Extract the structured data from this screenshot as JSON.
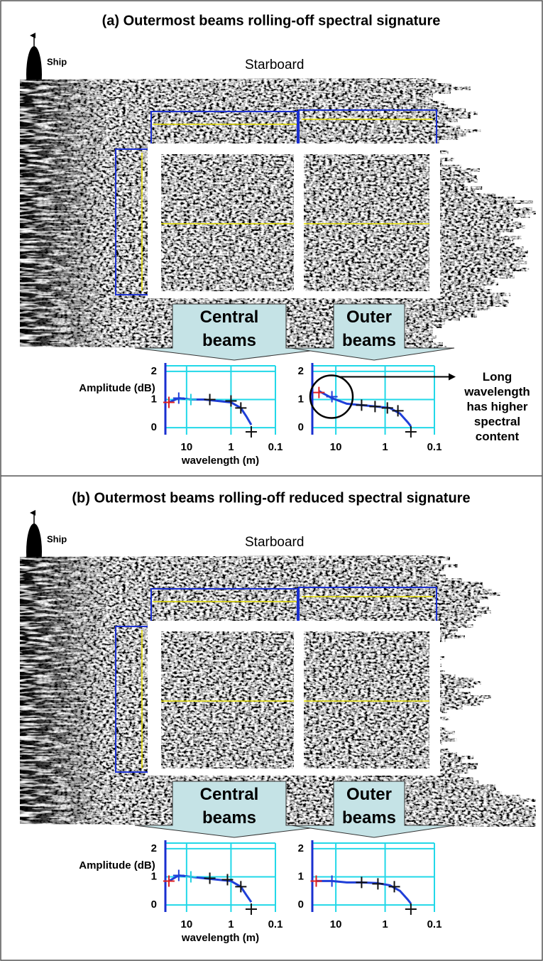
{
  "panels": [
    {
      "title": "(a) Outermost beams rolling-off spectral signature",
      "ship_label": "Ship",
      "side_label": "Starboard",
      "callouts": [
        "Central beams",
        "Outer beams"
      ],
      "annotation": "Long wavelength has higher spectral content",
      "charts": [
        {
          "type": "line",
          "ylabel": "Amplitude (dB)",
          "xlabel": "wavelength (m)",
          "xlog": true,
          "xlim": [
            30,
            0.1
          ],
          "ylim": [
            -0.25,
            2.2
          ],
          "xticks": [
            10,
            1,
            0.1
          ],
          "yticks": [
            0,
            1,
            2
          ],
          "curve": {
            "color": "#1f3fd8",
            "x": [
              25,
              15,
              8,
              4,
              2,
              1,
              0.6,
              0.45,
              0.35
            ],
            "values": [
              0.9,
              1.05,
              1.0,
              1.0,
              0.95,
              0.9,
              0.7,
              0.4,
              0.1
            ]
          },
          "markers": {
            "x": [
              25,
              15,
              8,
              3,
              1,
              0.6,
              0.35
            ],
            "values": [
              0.9,
              1.05,
              1.0,
              1.0,
              0.95,
              0.7,
              -0.15
            ],
            "colors": [
              "#e02020",
              "#1f3fd8",
              "#22d0e0",
              "#111111",
              "#111111",
              "#111111",
              "#111111"
            ]
          }
        },
        {
          "type": "line",
          "xlog": true,
          "xlim": [
            30,
            0.1
          ],
          "ylim": [
            -0.25,
            2.2
          ],
          "xticks": [
            10,
            1,
            0.1
          ],
          "yticks": [
            0,
            1,
            2
          ],
          "curve": {
            "color": "#1f3fd8",
            "x": [
              22,
              12,
              6,
              3,
              1.5,
              0.8,
              0.5,
              0.35,
              0.3
            ],
            "values": [
              1.3,
              1.05,
              0.85,
              0.8,
              0.75,
              0.7,
              0.5,
              0.2,
              0.05
            ]
          },
          "markers": {
            "x": [
              22,
              12,
              3,
              1.6,
              0.9,
              0.55,
              0.3
            ],
            "values": [
              1.25,
              1.1,
              0.8,
              0.75,
              0.7,
              0.6,
              -0.15
            ],
            "colors": [
              "#e02020",
              "#1f3fd8",
              "#111111",
              "#111111",
              "#111111",
              "#111111",
              "#111111"
            ]
          }
        }
      ]
    },
    {
      "title": "(b) Outermost beams rolling-off reduced spectral signature",
      "ship_label": "Ship",
      "side_label": "Starboard",
      "callouts": [
        "Central beams",
        "Outer beams"
      ],
      "charts": [
        {
          "type": "line",
          "ylabel": "Amplitude (dB)",
          "xlabel": "wavelength (m)",
          "xlog": true,
          "xlim": [
            30,
            0.1
          ],
          "ylim": [
            -0.25,
            2.2
          ],
          "xticks": [
            10,
            1,
            0.1
          ],
          "yticks": [
            0,
            1,
            2
          ],
          "curve": {
            "color": "#1f3fd8",
            "x": [
              25,
              15,
              8,
              4,
              2,
              1,
              0.6,
              0.45,
              0.35
            ],
            "values": [
              0.85,
              1.05,
              1.0,
              0.95,
              0.9,
              0.85,
              0.65,
              0.35,
              0.1
            ]
          },
          "markers": {
            "x": [
              25,
              15,
              8,
              3,
              1.2,
              0.6,
              0.35
            ],
            "values": [
              0.85,
              1.05,
              1.0,
              0.95,
              0.9,
              0.65,
              -0.15
            ],
            "colors": [
              "#e02020",
              "#1f3fd8",
              "#22d0e0",
              "#111111",
              "#111111",
              "#111111",
              "#111111"
            ]
          }
        },
        {
          "type": "line",
          "xlog": true,
          "xlim": [
            30,
            0.1
          ],
          "ylim": [
            -0.25,
            2.2
          ],
          "xticks": [
            10,
            1,
            0.1
          ],
          "yticks": [
            0,
            1,
            2
          ],
          "curve": {
            "color": "#1f3fd8",
            "x": [
              25,
              12,
              6,
              3,
              1.5,
              0.8,
              0.5,
              0.35,
              0.3
            ],
            "values": [
              0.85,
              0.85,
              0.8,
              0.8,
              0.78,
              0.7,
              0.5,
              0.2,
              0.05
            ]
          },
          "markers": {
            "x": [
              25,
              12,
              3,
              1.4,
              0.65,
              0.3
            ],
            "values": [
              0.85,
              0.85,
              0.8,
              0.75,
              0.65,
              -0.15
            ],
            "colors": [
              "#e02020",
              "#1f3fd8",
              "#111111",
              "#111111",
              "#111111",
              "#111111"
            ]
          }
        }
      ]
    }
  ]
}
